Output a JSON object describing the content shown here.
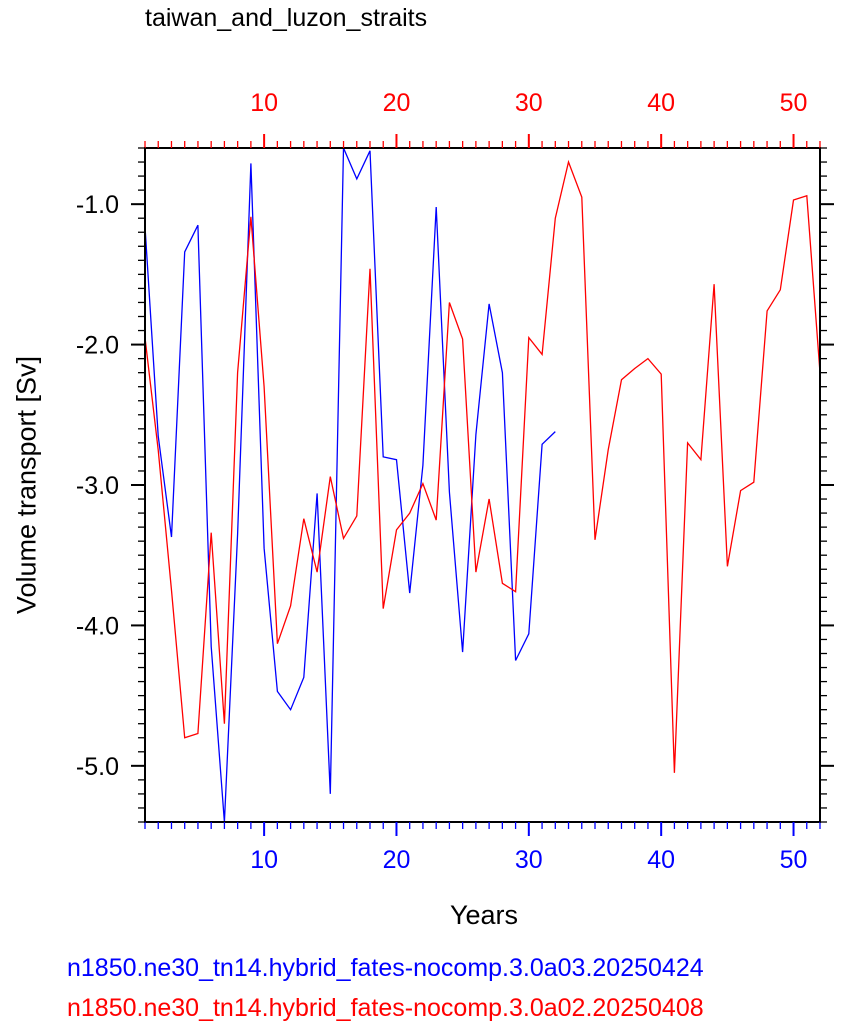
{
  "chart_data": {
    "type": "line",
    "title": "taiwan_and_luzon_straits",
    "xlabel": "Years",
    "ylabel": "Volume transport [Sv]",
    "xlim": [
      1,
      52
    ],
    "ylim": [
      -5.4,
      -0.6
    ],
    "y_ticks": [
      "-1.0",
      "-2.0",
      "-3.0",
      "-4.0",
      "-5.0"
    ],
    "y_tick_values": [
      -1.0,
      -2.0,
      -3.0,
      -4.0,
      -5.0
    ],
    "x_ticks": [
      "10",
      "20",
      "30",
      "40",
      "50"
    ],
    "x_tick_values": [
      10,
      20,
      30,
      40,
      50
    ],
    "axis_colors": {
      "bottom": "#0000ff",
      "top": "#ff0000",
      "left": "#000000"
    },
    "grid": false,
    "series": [
      {
        "name": "n1850.ne30_tn14.hybrid_fates-nocomp.3.0a03.20250424",
        "color": "#0000ff",
        "x": [
          1,
          2,
          3,
          4,
          5,
          6,
          7,
          8,
          9,
          10,
          11,
          12,
          13,
          14,
          15,
          16,
          17,
          18,
          19,
          20,
          21,
          22,
          23,
          24,
          25,
          26,
          27,
          28,
          29,
          30,
          31,
          32
        ],
        "values": [
          -1.16,
          -2.65,
          -3.37,
          -1.34,
          -1.15,
          -4.15,
          -5.4,
          -3.35,
          -0.71,
          -3.45,
          -4.47,
          -4.6,
          -4.37,
          -3.06,
          -5.2,
          -0.6,
          -0.82,
          -0.62,
          -2.8,
          -2.82,
          -3.77,
          -2.86,
          -1.02,
          -3.05,
          -4.19,
          -2.64,
          -1.71,
          -2.2,
          -4.25,
          -4.06,
          -2.71,
          -2.62
        ]
      },
      {
        "name": "n1850.ne30_tn14.hybrid_fates-nocomp.3.0a02.20250408",
        "color": "#ff0000",
        "x": [
          1,
          2,
          3,
          4,
          5,
          6,
          7,
          8,
          9,
          10,
          11,
          12,
          13,
          14,
          15,
          16,
          17,
          18,
          19,
          20,
          21,
          22,
          23,
          24,
          25,
          26,
          27,
          28,
          29,
          30,
          31,
          32,
          33,
          34,
          35,
          36,
          37,
          38,
          39,
          40,
          41,
          42,
          43,
          44,
          45,
          46,
          47,
          48,
          49,
          50,
          51,
          52
        ],
        "values": [
          -1.95,
          -2.75,
          -3.75,
          -4.8,
          -4.77,
          -3.34,
          -4.7,
          -2.2,
          -1.09,
          -2.3,
          -4.13,
          -3.86,
          -3.24,
          -3.62,
          -2.94,
          -3.38,
          -3.22,
          -1.46,
          -3.88,
          -3.32,
          -3.2,
          -2.99,
          -3.25,
          -1.7,
          -1.96,
          -3.62,
          -3.1,
          -3.7,
          -3.76,
          -1.95,
          -2.07,
          -1.1,
          -0.7,
          -0.95,
          -3.39,
          -2.75,
          -2.25,
          -2.17,
          -2.1,
          -2.21,
          -5.05,
          -2.7,
          -2.82,
          -1.57,
          -3.58,
          -3.04,
          -2.98,
          -1.76,
          -1.61,
          -0.97,
          -0.94,
          -2.2
        ]
      }
    ]
  }
}
